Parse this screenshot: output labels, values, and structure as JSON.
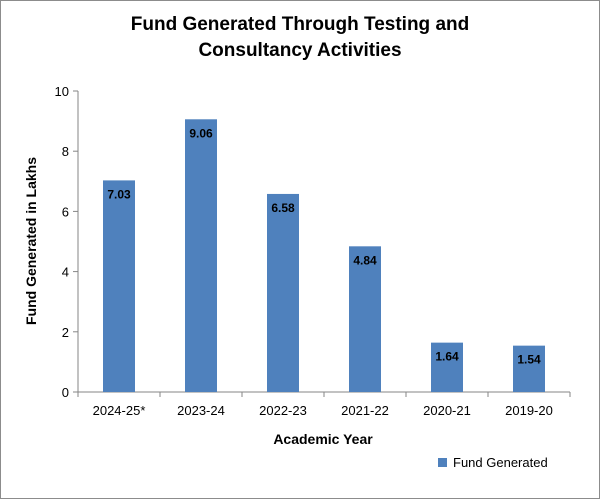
{
  "chart_data": {
    "type": "bar",
    "title": "Fund Generated Through Testing and Consultancy Activities",
    "title_lines": [
      "Fund Generated Through Testing and",
      "Consultancy Activities"
    ],
    "xlabel": "Academic Year",
    "ylabel": "Fund Generated in Lakhs",
    "categories": [
      "2024-25*",
      "2023-24",
      "2022-23",
      "2021-22",
      "2020-21",
      "2019-20"
    ],
    "series": [
      {
        "name": "Fund Generated",
        "values": [
          7.03,
          9.06,
          6.58,
          4.84,
          1.64,
          1.54
        ]
      }
    ],
    "data_labels": [
      "7.03",
      "9.06",
      "6.58",
      "4.84",
      "1.64",
      "1.54"
    ],
    "ylim": [
      0,
      10
    ],
    "yticks": [
      0,
      2,
      4,
      6,
      8,
      10
    ],
    "ytick_labels": [
      "0",
      "2",
      "4",
      "6",
      "8",
      "10"
    ],
    "grid": false,
    "legend_position": "bottom-right",
    "bar_color": "#4f81bd"
  }
}
